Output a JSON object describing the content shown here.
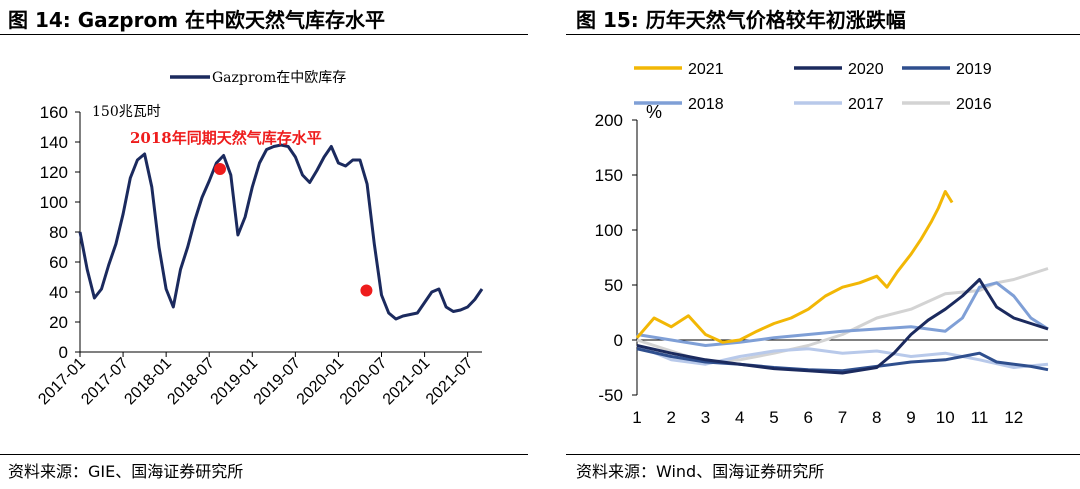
{
  "left": {
    "title": "图 14:  Gazprom 在中欧天然气库存水平",
    "source": "资料来源：GIE、国海证券研究所"
  },
  "right": {
    "title": "图 15:  历年天然气价格较年初涨跌幅",
    "source": "资料来源：Wind、国海证券研究所"
  },
  "chart_data": [
    {
      "type": "line",
      "unit_label": "150兆瓦时",
      "annotation": "2018年同期天然气库存水平",
      "ylim": [
        0,
        160
      ],
      "yticks": [
        "0",
        "20",
        "40",
        "60",
        "80",
        "100",
        "120",
        "140",
        "160"
      ],
      "xticks": [
        "2017-01",
        "2017-07",
        "2018-01",
        "2018-07",
        "2019-01",
        "2019-07",
        "2020-01",
        "2020-07",
        "2021-01",
        "2021-07"
      ],
      "series": [
        {
          "name": "Gazprom在中欧库存",
          "color": "#1b2a5e",
          "x": [
            0,
            1,
            2,
            3,
            4,
            5,
            6,
            7,
            8,
            9,
            10,
            11,
            12,
            13,
            14,
            15,
            16,
            17,
            18,
            19,
            20,
            21,
            22,
            23,
            24,
            25,
            26,
            27,
            28,
            29,
            30,
            31,
            32,
            33,
            34,
            35,
            36,
            37,
            38,
            39,
            40,
            41,
            42,
            43,
            44,
            45,
            46,
            47,
            48,
            49,
            50,
            51,
            52,
            53,
            54,
            55,
            56
          ],
          "values": [
            80,
            55,
            36,
            42,
            58,
            72,
            92,
            116,
            128,
            132,
            110,
            70,
            42,
            30,
            55,
            70,
            88,
            103,
            114,
            126,
            131,
            118,
            78,
            90,
            110,
            126,
            135,
            137,
            138,
            137,
            130,
            118,
            113,
            121,
            130,
            137,
            126,
            124,
            128,
            128,
            112,
            72,
            38,
            26,
            22,
            24,
            25,
            26,
            33,
            40,
            42,
            30,
            27,
            28,
            30,
            35,
            42
          ]
        }
      ],
      "markers": [
        {
          "label": "2018年同期天然气库存水平",
          "x": 19.5,
          "y": 122,
          "color": "#ee1c1c"
        },
        {
          "label": "",
          "x": 39.9,
          "y": 41,
          "color": "#ee1c1c"
        }
      ]
    },
    {
      "type": "line",
      "ylabel": "%",
      "ylim": [
        -50,
        200
      ],
      "yticks": [
        "-50",
        "0",
        "50",
        "100",
        "150",
        "200"
      ],
      "xlim": [
        1,
        13
      ],
      "xticks": [
        "1",
        "2",
        "3",
        "4",
        "5",
        "6",
        "7",
        "8",
        "9",
        "10",
        "11",
        "12"
      ],
      "series": [
        {
          "name": "2021",
          "color": "#f2b705",
          "x": [
            1,
            1.5,
            2,
            2.5,
            3,
            3.5,
            4,
            4.5,
            5,
            5.5,
            6,
            6.5,
            7,
            7.5,
            8,
            8.3,
            8.6,
            9,
            9.3,
            9.6,
            9.8,
            10,
            10.2
          ],
          "values": [
            2,
            20,
            12,
            22,
            5,
            -2,
            0,
            8,
            15,
            20,
            28,
            40,
            48,
            52,
            58,
            48,
            62,
            78,
            92,
            108,
            120,
            135,
            125
          ]
        },
        {
          "name": "2020",
          "color": "#1b2a5e",
          "x": [
            1,
            2,
            3,
            4,
            5,
            6,
            7,
            8,
            8.5,
            9,
            9.5,
            10,
            10.5,
            11,
            11.5,
            12,
            12.5,
            13
          ],
          "values": [
            -5,
            -12,
            -18,
            -22,
            -26,
            -28,
            -30,
            -25,
            -12,
            5,
            18,
            28,
            40,
            55,
            30,
            20,
            15,
            10
          ]
        },
        {
          "name": "2019",
          "color": "#2f4f8e",
          "x": [
            1,
            2,
            3,
            4,
            5,
            6,
            7,
            8,
            9,
            10,
            10.5,
            11,
            11.5,
            12,
            12.5,
            13
          ],
          "values": [
            -8,
            -15,
            -20,
            -22,
            -25,
            -27,
            -28,
            -24,
            -20,
            -18,
            -15,
            -12,
            -20,
            -22,
            -24,
            -27
          ]
        },
        {
          "name": "2018",
          "color": "#7f9fd6",
          "x": [
            1,
            2,
            3,
            4,
            5,
            6,
            7,
            8,
            9,
            10,
            10.5,
            11,
            11.5,
            12,
            12.5,
            13
          ],
          "values": [
            5,
            0,
            -5,
            -2,
            2,
            5,
            8,
            10,
            12,
            8,
            20,
            48,
            52,
            40,
            20,
            10
          ]
        },
        {
          "name": "2017",
          "color": "#b8c9ea",
          "x": [
            1,
            2,
            3,
            4,
            5,
            6,
            7,
            8,
            9,
            10,
            11,
            12,
            13
          ],
          "values": [
            -5,
            -18,
            -22,
            -15,
            -10,
            -8,
            -12,
            -10,
            -15,
            -12,
            -18,
            -25,
            -22
          ]
        },
        {
          "name": "2016",
          "color": "#d3d3d3",
          "x": [
            1,
            2,
            3,
            4,
            5,
            6,
            7,
            8,
            9,
            10,
            11,
            11.5,
            12,
            12.5,
            13
          ],
          "values": [
            0,
            -10,
            -20,
            -18,
            -12,
            -5,
            5,
            20,
            28,
            42,
            45,
            52,
            55,
            60,
            65
          ]
        }
      ]
    }
  ]
}
